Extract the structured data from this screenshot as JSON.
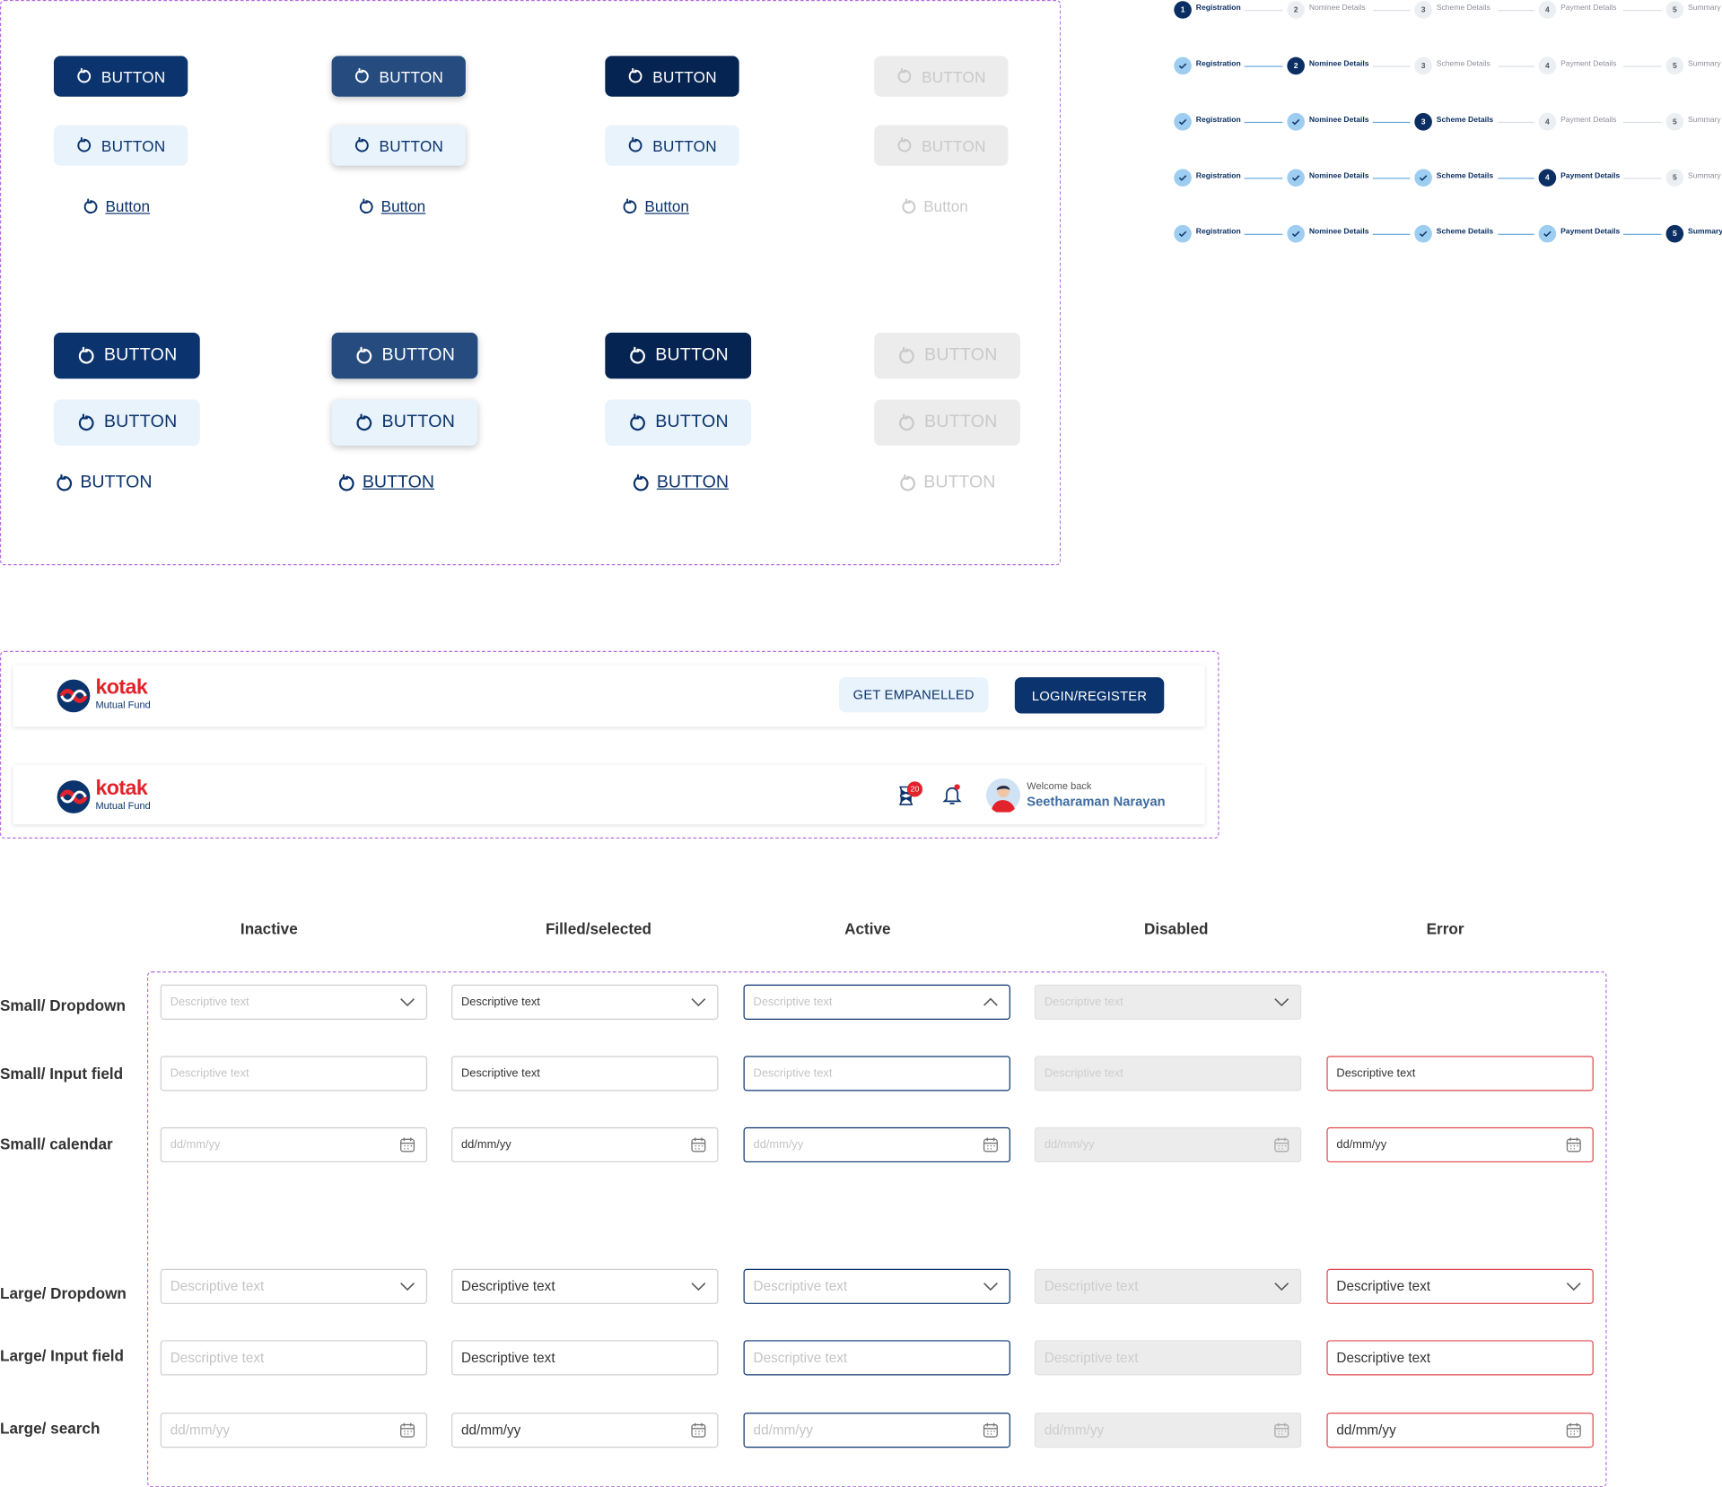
{
  "buttons": {
    "small": {
      "rows": [
        [
          "BUTTON",
          "BUTTON",
          "BUTTON",
          "BUTTON"
        ],
        [
          "BUTTON",
          "BUTTON",
          "BUTTON",
          "BUTTON"
        ],
        [
          "Button",
          "Button",
          "Button",
          "Button"
        ]
      ]
    },
    "large": {
      "rows": [
        [
          "BUTTON",
          "BUTTON",
          "BUTTON",
          "BUTTON"
        ],
        [
          "BUTTON",
          "BUTTON",
          "BUTTON",
          "BUTTON"
        ],
        [
          "BUTTON",
          "BUTTON",
          "BUTTON",
          "BUTTON"
        ]
      ]
    }
  },
  "stepper": {
    "numbers": [
      1,
      2,
      3,
      4,
      5
    ],
    "steps": [
      "Registration",
      "Nominee Details",
      "Scheme Details",
      "Payment Details",
      "Summary"
    ]
  },
  "header_guest": {
    "logo": "kotak",
    "logo_sub": "Mutual Fund",
    "actions": [
      "GET EMPANELLED",
      "LOGIN/REGISTER"
    ]
  },
  "header_user": {
    "logo": "kotak",
    "logo_sub": "Mutual Fund",
    "badge": "20",
    "greeting": "Welcome back",
    "user": "Seetharaman Narayan"
  },
  "form": {
    "columns": [
      "Inactive",
      "Filled/selected",
      "Active",
      "Disabled",
      "Error"
    ],
    "rows": [
      {
        "label": "Small/ Dropdown",
        "cells": [
          "Descriptive text",
          "Descriptive text",
          "Descriptive text",
          "Descriptive text",
          null
        ]
      },
      {
        "label": "Small/ Input field",
        "cells": [
          "Descriptive text",
          "Descriptive text",
          "Descriptive text",
          "Descriptive text",
          "Descriptive text"
        ]
      },
      {
        "label": "Small/ calendar",
        "cells": [
          "dd/mm/yy",
          "dd/mm/yy",
          "dd/mm/yy",
          "dd/mm/yy",
          "dd/mm/yy"
        ]
      },
      {
        "label": "Large/ Dropdown",
        "cells": [
          "Descriptive text",
          "Descriptive text",
          "Descriptive text",
          "Descriptive text",
          "Descriptive text"
        ]
      },
      {
        "label": "Large/ Input field",
        "cells": [
          "Descriptive text",
          "Descriptive text",
          "Descriptive text",
          "Descriptive text",
          "Descriptive text"
        ]
      },
      {
        "label": "Large/ search",
        "cells": [
          "dd/mm/yy",
          "dd/mm/yy",
          "dd/mm/yy",
          "dd/mm/yy",
          "dd/mm/yy"
        ]
      }
    ]
  }
}
